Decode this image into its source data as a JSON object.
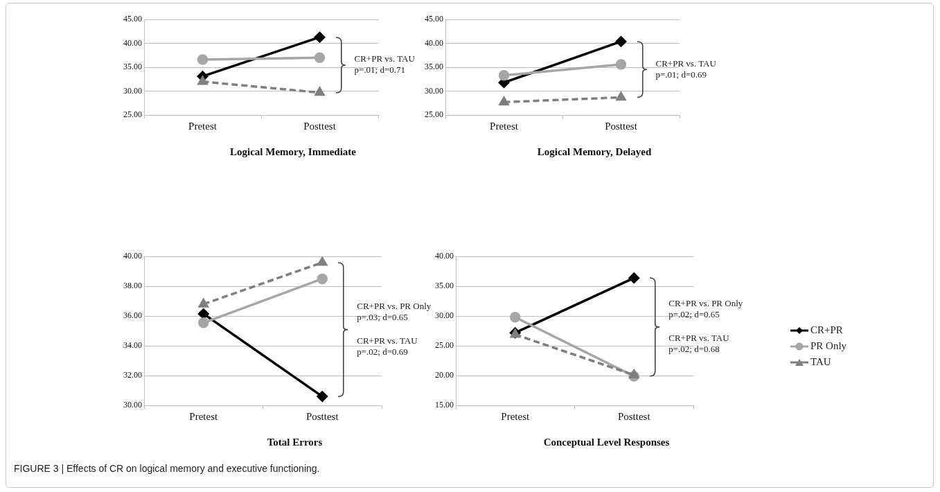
{
  "chart_data": [
    {
      "type": "line",
      "title": "Logical Memory, Immediate",
      "categories": [
        "Pretest",
        "Posttest"
      ],
      "series": [
        {
          "color": "#000000",
          "values": [
            33.1,
            41.3
          ],
          "marker": "diamond",
          "line_style": "solid"
        },
        {
          "color": "#a6a6a6",
          "values": [
            36.6,
            37.0
          ],
          "marker": "circle",
          "line_style": "solid"
        },
        {
          "color": "#7f7f7f",
          "values": [
            32.0,
            29.7
          ],
          "marker": "triangle",
          "line_style": "dashed"
        }
      ],
      "ylim": [
        25,
        45
      ],
      "yticks": [
        {
          "value": 25,
          "label": "25.00"
        },
        {
          "value": 30,
          "label": "30.00"
        },
        {
          "value": 35,
          "label": "35.00"
        },
        {
          "value": 40,
          "label": "40.00"
        },
        {
          "value": 45,
          "label": "45.00"
        }
      ],
      "grid": "y",
      "legend": false,
      "annotations": [
        "CR+PR vs. TAU\np=.01; d=0.71"
      ]
    },
    {
      "type": "line",
      "title": "Logical Memory, Delayed",
      "categories": [
        "Pretest",
        "Posttest"
      ],
      "series": [
        {
          "color": "#000000",
          "values": [
            31.8,
            40.4
          ],
          "marker": "diamond",
          "line_style": "solid"
        },
        {
          "color": "#a6a6a6",
          "values": [
            33.3,
            35.6
          ],
          "marker": "circle",
          "line_style": "solid"
        },
        {
          "color": "#7f7f7f",
          "values": [
            27.7,
            28.7
          ],
          "marker": "triangle",
          "line_style": "dashed"
        }
      ],
      "ylim": [
        25,
        45
      ],
      "yticks": [
        {
          "value": 25,
          "label": "25.00"
        },
        {
          "value": 30,
          "label": "30.00"
        },
        {
          "value": 35,
          "label": "35.00"
        },
        {
          "value": 40,
          "label": "40.00"
        },
        {
          "value": 45,
          "label": "45.00"
        }
      ],
      "grid": "y",
      "legend": false,
      "annotations": [
        "CR+PR vs. TAU\np=.01; d=0.69"
      ]
    },
    {
      "type": "line",
      "title": "Total Errors",
      "categories": [
        "Pretest",
        "Posttest"
      ],
      "series": [
        {
          "color": "#000000",
          "values": [
            36.15,
            30.6
          ],
          "marker": "diamond",
          "line_style": "solid"
        },
        {
          "color": "#a6a6a6",
          "values": [
            35.55,
            38.5
          ],
          "marker": "circle",
          "line_style": "solid"
        },
        {
          "color": "#7f7f7f",
          "values": [
            36.8,
            39.6
          ],
          "marker": "triangle",
          "line_style": "dashed"
        }
      ],
      "ylim": [
        30,
        40
      ],
      "yticks": [
        {
          "value": 30,
          "label": "30.00"
        },
        {
          "value": 32,
          "label": "32.00"
        },
        {
          "value": 34,
          "label": "34.00"
        },
        {
          "value": 36,
          "label": "36.00"
        },
        {
          "value": 38,
          "label": "38.00"
        },
        {
          "value": 40,
          "label": "40.00"
        }
      ],
      "grid": "y",
      "legend": false,
      "annotations": [
        "CR+PR vs. PR Only\np=.03; d=0.65",
        "CR+PR vs. TAU\np=.02; d=0.69"
      ]
    },
    {
      "type": "line",
      "title": "Conceptual Level Responses",
      "categories": [
        "Pretest",
        "Posttest"
      ],
      "series": [
        {
          "name": "CR+PR",
          "color": "#000000",
          "values": [
            27.2,
            36.4
          ],
          "marker": "diamond",
          "line_style": "solid"
        },
        {
          "name": "PR Only",
          "color": "#a6a6a6",
          "values": [
            29.8,
            19.9
          ],
          "marker": "circle",
          "line_style": "solid"
        },
        {
          "name": "TAU",
          "color": "#7f7f7f",
          "values": [
            26.9,
            20.1
          ],
          "marker": "triangle",
          "line_style": "dashed"
        }
      ],
      "ylim": [
        15,
        40
      ],
      "yticks": [
        {
          "value": 15,
          "label": "15.00"
        },
        {
          "value": 20,
          "label": "20.00"
        },
        {
          "value": 25,
          "label": "25.00"
        },
        {
          "value": 30,
          "label": "30.00"
        },
        {
          "value": 35,
          "label": "35.00"
        },
        {
          "value": 40,
          "label": "40.00"
        }
      ],
      "grid": "y",
      "legend": "right",
      "annotations": [
        "CR+PR vs. PR Only\np=.02; d=0.65",
        "CR+PR vs. TAU\np=.02; d=0.68"
      ]
    },
    {
      "type": "other",
      "annotations": [
        "FIGURE 3 | Effects of CR on logical memory and executive functioning."
      ]
    }
  ]
}
